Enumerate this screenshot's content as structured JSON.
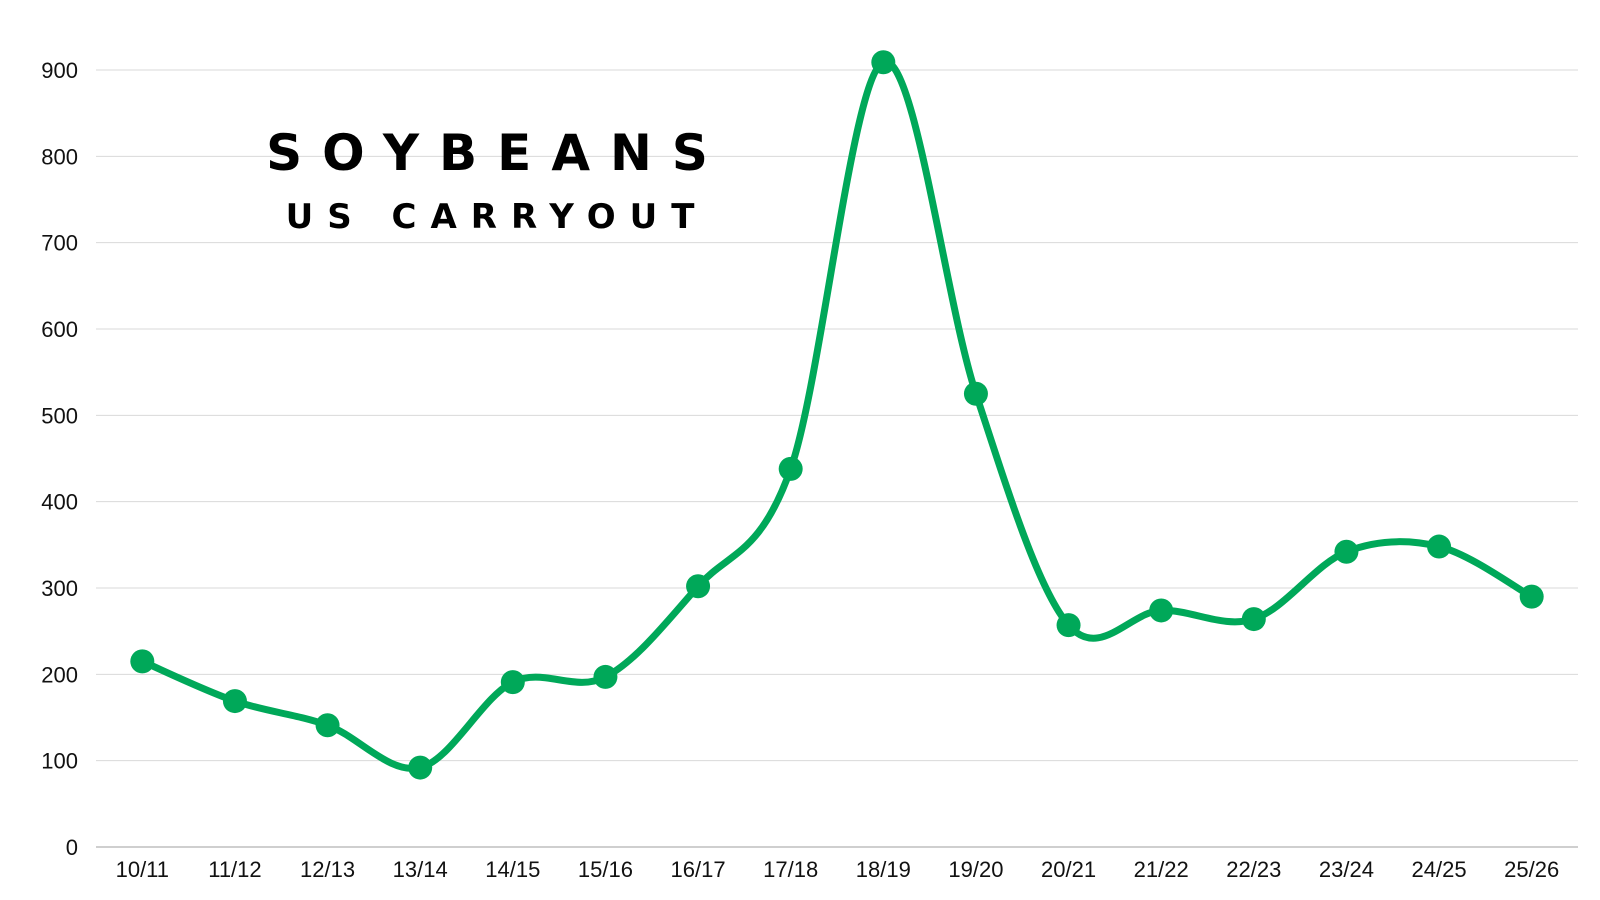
{
  "chart_data": {
    "type": "line",
    "title": "SOYBEANS",
    "subtitle": "US CARRYOUT",
    "xlabel": "",
    "ylabel": "",
    "categories": [
      "10/11",
      "11/12",
      "12/13",
      "13/14",
      "14/15",
      "15/16",
      "16/17",
      "17/18",
      "18/19",
      "19/20",
      "20/21",
      "21/22",
      "22/23",
      "23/24",
      "24/25",
      "25/26"
    ],
    "series": [
      {
        "values": [
          215,
          169,
          141,
          92,
          191,
          197,
          302,
          438,
          909,
          525,
          257,
          274,
          264,
          342,
          348,
          290
        ]
      }
    ],
    "ylim": [
      0,
      900
    ],
    "yticks": [
      0,
      100,
      200,
      300,
      400,
      500,
      600,
      700,
      800,
      900
    ],
    "grid": true,
    "legend": "none",
    "smooth": true,
    "colors": {
      "line": "#00a859",
      "grid": "#d9d9d9",
      "axis": "#bfbfbf"
    }
  }
}
